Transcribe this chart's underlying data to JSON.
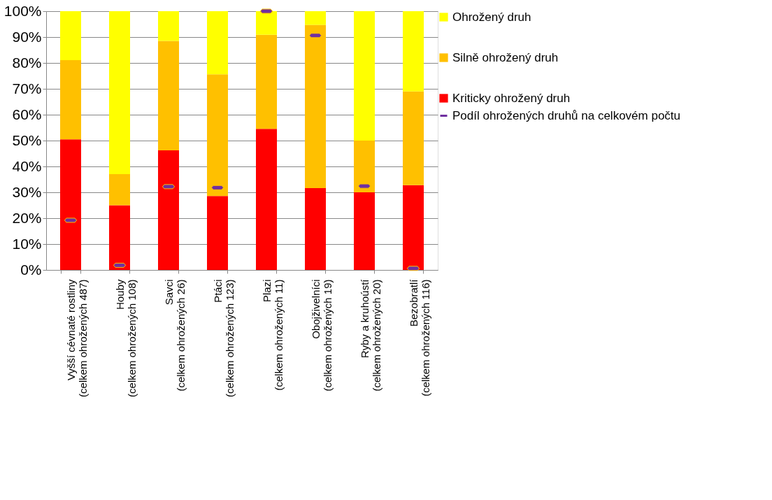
{
  "chart_data": {
    "type": "bar",
    "stacked": true,
    "legend": "right",
    "grid": "y",
    "categories": [
      "Vyšší cévnaté rostliny\n(celkem ohrožených 487)",
      "Houby\n(celkem ohrožených 108)",
      "Savci\n(celkem ohrožených 26)",
      "Ptáci\n(celkem ohrožených 123)",
      "Plazi\n(celkem ohrožených 11)",
      "Obojživelníci\n(celkem ohrožených 19)",
      "Ryby a kruhoústí\n(celkem ohrožených 20)",
      "Bezobratlí\n(celkem ohrožených 116)"
    ],
    "ylim": [
      0,
      100
    ],
    "yticks": [
      {
        "value": 0,
        "label": "0%"
      },
      {
        "value": 10,
        "label": "10%"
      },
      {
        "value": 20,
        "label": "20%"
      },
      {
        "value": 30,
        "label": "30%"
      },
      {
        "value": 40,
        "label": "40%"
      },
      {
        "value": 50,
        "label": "50%"
      },
      {
        "value": 60,
        "label": "60%"
      },
      {
        "value": 70,
        "label": "70%"
      },
      {
        "value": 80,
        "label": "80%"
      },
      {
        "value": 90,
        "label": "90%"
      },
      {
        "value": 100,
        "label": "100%"
      }
    ],
    "series": [
      {
        "name": "Kriticky ohrožený druh",
        "color": "#ff0000",
        "values": [
          50.5,
          25,
          46.2,
          28.6,
          54.5,
          31.6,
          30,
          32.8
        ]
      },
      {
        "name": "Silně ohrožený druh",
        "color": "#ffc000",
        "values": [
          30.6,
          12,
          42.3,
          47,
          36.4,
          63.1,
          20,
          36.2
        ]
      },
      {
        "name": "Ohrožený druh",
        "color": "#ffff00",
        "values": [
          18.9,
          63,
          11.5,
          24.4,
          9.1,
          5.3,
          50,
          31
        ]
      },
      {
        "name": "Podíl ohrožených druhů na celkovém počtu",
        "type": "scatter",
        "color": "#7030a0",
        "values": [
          19.2,
          1.8,
          32.2,
          31.8,
          100,
          90.6,
          32.4,
          0.6
        ]
      }
    ]
  }
}
